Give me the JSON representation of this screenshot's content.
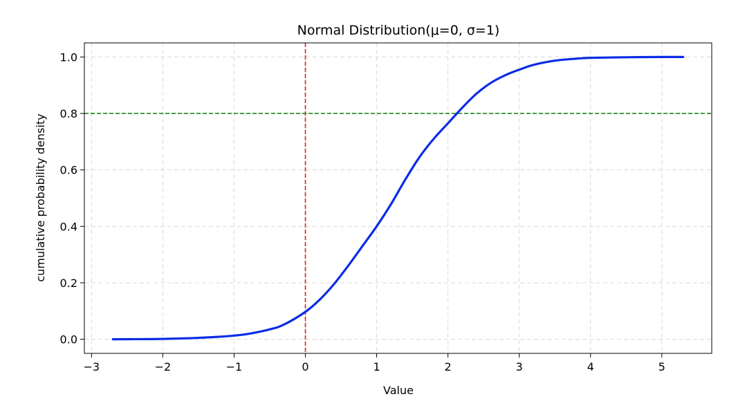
{
  "chart_data": {
    "type": "line",
    "title": "Normal Distribution(μ=0, σ=1)",
    "xlabel": "Value",
    "ylabel": "cumulative probability density",
    "xlim": [
      -3.1,
      5.7
    ],
    "ylim": [
      -0.05,
      1.05
    ],
    "x_ticks": [
      -3,
      -2,
      -1,
      0,
      1,
      2,
      3,
      4,
      5
    ],
    "x_tick_labels": [
      "−3",
      "−2",
      "−1",
      "0",
      "1",
      "2",
      "3",
      "4",
      "5"
    ],
    "y_ticks": [
      0.0,
      0.2,
      0.4,
      0.6,
      0.8,
      1.0
    ],
    "y_tick_labels": [
      "0.0",
      "0.2",
      "0.4",
      "0.6",
      "0.8",
      "1.0"
    ],
    "grid": true,
    "series": [
      {
        "color": "#0a2ce6",
        "x": [
          -2.7,
          -2.5,
          -2.0,
          -1.5,
          -1.2,
          -1.0,
          -0.8,
          -0.5,
          -0.3,
          0.0,
          0.2,
          0.4,
          0.6,
          0.8,
          1.0,
          1.2,
          1.4,
          1.6,
          1.8,
          2.0,
          2.2,
          2.4,
          2.6,
          2.8,
          3.0,
          3.2,
          3.5,
          3.8,
          4.0,
          4.5,
          5.0,
          5.3
        ],
        "y": [
          0.0,
          0.0002,
          0.0012,
          0.005,
          0.009,
          0.013,
          0.019,
          0.035,
          0.052,
          0.097,
          0.14,
          0.195,
          0.26,
          0.33,
          0.4,
          0.478,
          0.565,
          0.645,
          0.71,
          0.765,
          0.82,
          0.87,
          0.908,
          0.935,
          0.955,
          0.972,
          0.987,
          0.994,
          0.997,
          0.999,
          1.0,
          1.0
        ]
      }
    ],
    "reference_lines": [
      {
        "orientation": "vertical",
        "value": 0,
        "color": "#e41a1c"
      },
      {
        "orientation": "horizontal",
        "value": 0.8,
        "color": "#1a8a1a"
      }
    ]
  }
}
